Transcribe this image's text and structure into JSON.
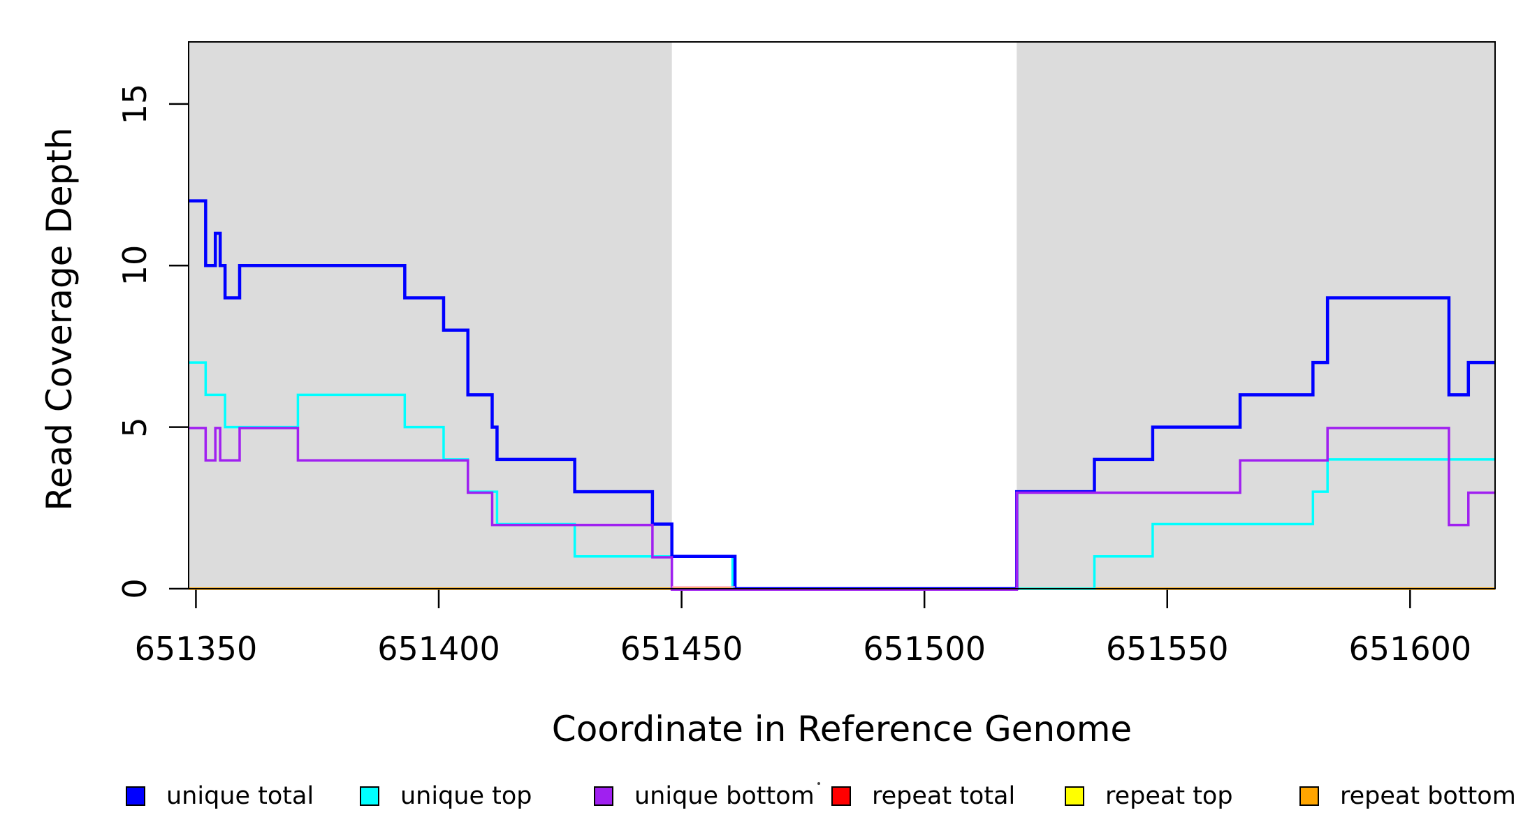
{
  "chart_data": {
    "type": "line",
    "subtype": "step-coverage",
    "title": "",
    "xlabel": "Coordinate in Reference Genome",
    "ylabel": "Read Coverage Depth",
    "xlim": [
      651348.5,
      651617.5
    ],
    "ylim": [
      0,
      16.92
    ],
    "grid": false,
    "xticks": [
      651350,
      651400,
      651450,
      651500,
      651550,
      651600
    ],
    "xtick_labels": [
      "651350",
      "651400",
      "651450",
      "651500",
      "651550",
      "651600"
    ],
    "yticks": [
      0,
      5,
      10,
      15
    ],
    "ytick_labels": [
      "0",
      "5",
      "10",
      "15"
    ],
    "shade_color": "#DCDCDC",
    "shaded_regions": [
      {
        "x0": 651348.5,
        "x1": 651448,
        "meaning": "left shaded block"
      },
      {
        "x0": 651519,
        "x1": 651617.5,
        "meaning": "right shaded block"
      }
    ],
    "draw_order": [
      "repeat total",
      "repeat top",
      "repeat bottom",
      "unique top",
      "unique total",
      "unique bottom"
    ],
    "series": [
      {
        "name": "unique total",
        "color": "#0000FF",
        "width": 4.5,
        "y_offset": 0,
        "steps": [
          [
            651348.5,
            12
          ],
          [
            651352,
            10
          ],
          [
            651354,
            11
          ],
          [
            651355,
            10
          ],
          [
            651356,
            9
          ],
          [
            651359,
            10
          ],
          [
            651393,
            9
          ],
          [
            651401,
            8
          ],
          [
            651406,
            6
          ],
          [
            651411,
            5
          ],
          [
            651412,
            4
          ],
          [
            651428,
            3
          ],
          [
            651444,
            2
          ],
          [
            651448,
            1
          ],
          [
            651461,
            0
          ],
          [
            651519,
            3
          ],
          [
            651535,
            4
          ],
          [
            651547,
            5
          ],
          [
            651565,
            6
          ],
          [
            651580,
            7
          ],
          [
            651583,
            9
          ],
          [
            651608,
            6
          ],
          [
            651612,
            7
          ]
        ]
      },
      {
        "name": "unique top",
        "color": "#00FFFF",
        "width": 3.5,
        "y_offset": 0,
        "steps": [
          [
            651348.5,
            7
          ],
          [
            651352,
            6
          ],
          [
            651356,
            5
          ],
          [
            651371,
            6
          ],
          [
            651393,
            5
          ],
          [
            651401,
            4
          ],
          [
            651406,
            3
          ],
          [
            651412,
            2
          ],
          [
            651428,
            1
          ],
          [
            651460.5,
            0
          ],
          [
            651535,
            1
          ],
          [
            651547,
            2
          ],
          [
            651580,
            3
          ],
          [
            651583,
            4
          ]
        ]
      },
      {
        "name": "unique bottom",
        "color": "#A020F0",
        "width": 3.5,
        "y_offset": 1.3,
        "steps": [
          [
            651348.5,
            5
          ],
          [
            651352,
            4
          ],
          [
            651354,
            5
          ],
          [
            651355,
            4
          ],
          [
            651359,
            5
          ],
          [
            651371,
            4
          ],
          [
            651406,
            3
          ],
          [
            651411,
            2
          ],
          [
            651444,
            1
          ],
          [
            651448,
            0
          ],
          [
            651519,
            3
          ],
          [
            651565,
            4
          ],
          [
            651583,
            5
          ],
          [
            651608,
            2
          ],
          [
            651612,
            3
          ]
        ]
      },
      {
        "name": "repeat total",
        "color": "#FF0000",
        "width": 3,
        "y_offset": 0,
        "steps": [
          [
            651348.5,
            0
          ]
        ]
      },
      {
        "name": "repeat top",
        "color": "#FFFF00",
        "width": 3,
        "y_offset": 0,
        "steps": [
          [
            651348.5,
            0
          ]
        ]
      },
      {
        "name": "repeat bottom",
        "color": "#FFA500",
        "width": 3.5,
        "y_offset": 0,
        "steps": [
          [
            651348.5,
            0
          ]
        ]
      }
    ],
    "extra_segments": [
      {
        "x0": 651448,
        "x1": 651461,
        "y": 0,
        "dy": -2.6,
        "color": "#FFA8BC",
        "width": 2
      }
    ]
  },
  "legend": {
    "position": "bottom",
    "items": [
      {
        "label": "unique total",
        "color": "#0000FF"
      },
      {
        "label": "unique top",
        "color": "#00FFFF"
      },
      {
        "label": "unique bottom",
        "color": "#A020F0"
      },
      {
        "label": "repeat total",
        "color": "#FF0000"
      },
      {
        "label": "repeat top",
        "color": "#FFFF00"
      },
      {
        "label": "repeat bottom",
        "color": "#FFA500"
      }
    ]
  }
}
